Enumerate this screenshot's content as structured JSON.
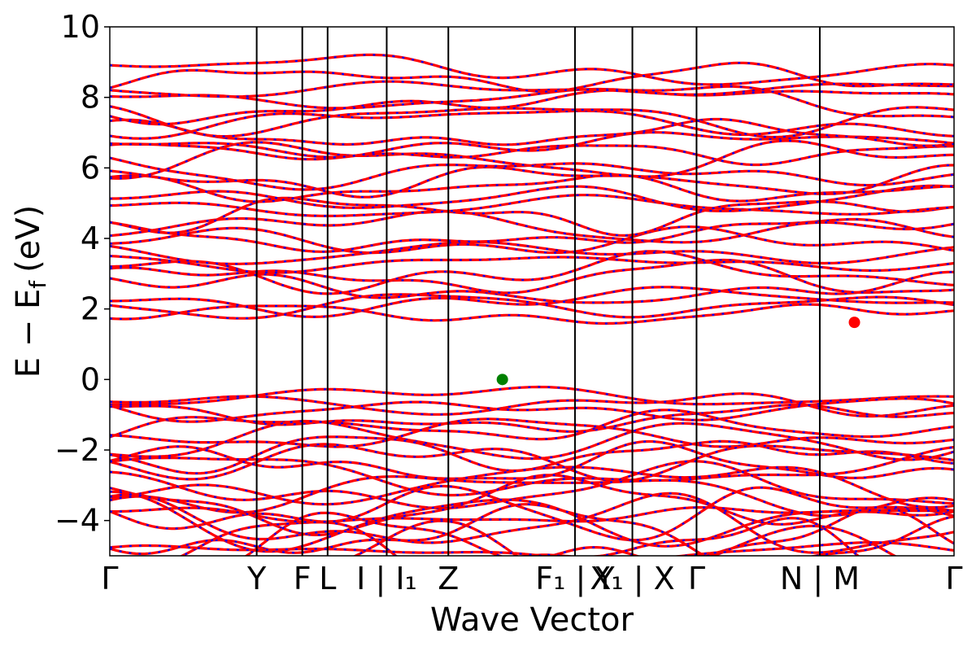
{
  "chart_data": {
    "type": "line",
    "title": "",
    "xlabel": "Wave Vector",
    "ylabel": "E − E",
    "ylabel_subscript": "f",
    "ylabel_unit": "(eV)",
    "ylim": [
      -5,
      10
    ],
    "yticks": [
      -4,
      -2,
      0,
      2,
      4,
      6,
      8,
      10
    ],
    "grid": false,
    "legend": "none",
    "kpoints": [
      {
        "label": "Γ",
        "x": 0.0
      },
      {
        "label": "Y",
        "x": 0.174
      },
      {
        "label": "F",
        "x": 0.228
      },
      {
        "label": "L",
        "x": 0.258
      },
      {
        "label": "I | I₁",
        "x": 0.328
      },
      {
        "label": "Z",
        "x": 0.401
      },
      {
        "label": "F₁ | Y",
        "x": 0.551
      },
      {
        "label": "X₁ | X",
        "x": 0.619
      },
      {
        "label": "Γ",
        "x": 0.695
      },
      {
        "label": "N | M",
        "x": 0.841
      },
      {
        "label": "Γ",
        "x": 1.0
      }
    ],
    "series": [
      {
        "values": []
      },
      {
        "values": []
      }
    ],
    "markers": [
      {
        "kind": "valence-band-maximum",
        "x": 0.465,
        "y": 0.0,
        "color": "#008000"
      },
      {
        "kind": "conduction-band-minimum",
        "x": 0.882,
        "y": 1.62,
        "color": "#ff0000"
      }
    ],
    "colors": {
      "band_solid": "#ff0000",
      "band_dashed": "#0000ff",
      "axis": "#000000"
    }
  }
}
